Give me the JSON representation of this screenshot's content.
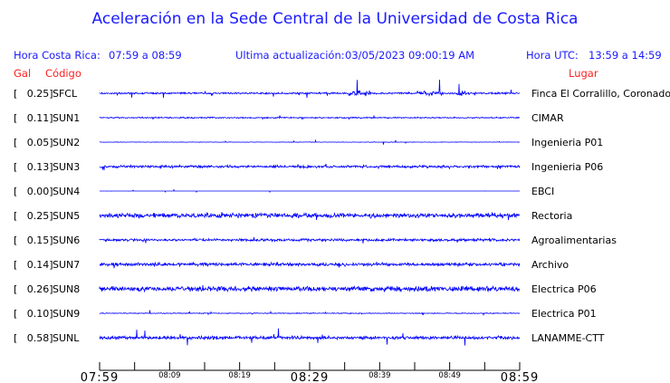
{
  "title": "Aceleración en la Sede Central de la Universidad de Costa Rica",
  "header": {
    "local_label": "Hora Costa Rica:",
    "local_range": "07:59 a 08:59",
    "update_label": "Ultima actualización:",
    "update_value": "03/05/2023 09:00:19 AM",
    "utc_label": "Hora UTC:",
    "utc_range": "13:59 a 14:59"
  },
  "columns": {
    "gal": "Gal",
    "code": "Código",
    "place": "Lugar"
  },
  "colors": {
    "title": "#1a1aff",
    "trace": "#0000ff",
    "column_headers": "#ff2020"
  },
  "chart_data": {
    "type": "line",
    "xlabel": "",
    "ylabel": "",
    "x_ticks_major": [
      "07:59",
      "08:29",
      "08:59"
    ],
    "x_ticks_minor": [
      "08:09",
      "08:19",
      "08:39",
      "08:49"
    ],
    "xlim": [
      "07:59",
      "08:59"
    ],
    "stations": [
      {
        "gal": "[   0.25]",
        "code": "SFCL",
        "place": "Finca El Corralillo, Coronado",
        "peak_gal": 0.25
      },
      {
        "gal": "[   0.11]",
        "code": "SUN1",
        "place": "CIMAR",
        "peak_gal": 0.11
      },
      {
        "gal": "[   0.05]",
        "code": "SUN2",
        "place": "Ingenieria P01",
        "peak_gal": 0.05
      },
      {
        "gal": "[   0.13]",
        "code": "SUN3",
        "place": "Ingenieria P06",
        "peak_gal": 0.13
      },
      {
        "gal": "[   0.00]",
        "code": "SUN4",
        "place": "EBCI",
        "peak_gal": 0.0
      },
      {
        "gal": "[   0.25]",
        "code": "SUN5",
        "place": "Rectoria",
        "peak_gal": 0.25
      },
      {
        "gal": "[   0.15]",
        "code": "SUN6",
        "place": "Agroalimentarias",
        "peak_gal": 0.15
      },
      {
        "gal": "[   0.14]",
        "code": "SUN7",
        "place": "Archivo",
        "peak_gal": 0.14
      },
      {
        "gal": "[   0.26]",
        "code": "SUN8",
        "place": "Electrica P06",
        "peak_gal": 0.26
      },
      {
        "gal": "[   0.10]",
        "code": "SUN9",
        "place": "Electrica P01",
        "peak_gal": 0.1
      },
      {
        "gal": "[   0.58]",
        "code": "SUNL",
        "place": "LANAMME-CTT",
        "peak_gal": 0.58
      }
    ]
  }
}
